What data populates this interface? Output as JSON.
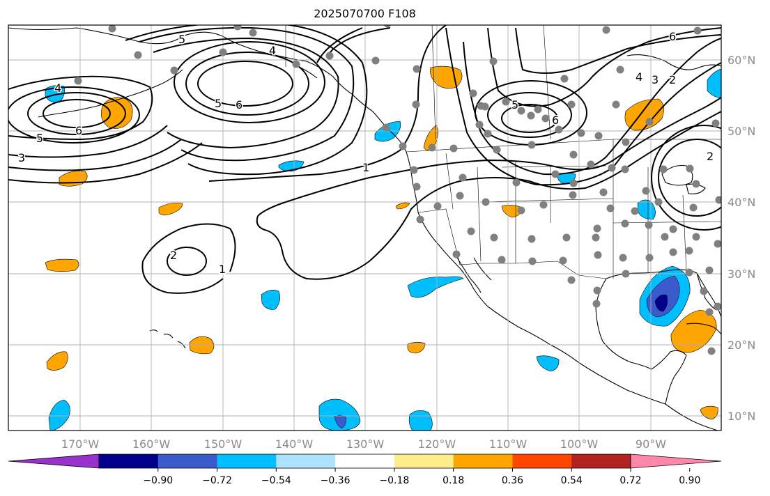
{
  "title": "2025070700 F108",
  "map": {
    "lon_ticks": [
      "170°W",
      "160°W",
      "150°W",
      "140°W",
      "130°W",
      "120°W",
      "110°W",
      "100°W",
      "90°W"
    ],
    "lat_ticks": [
      "60°N",
      "50°N",
      "40°N",
      "30°N",
      "20°N",
      "10°N"
    ],
    "contour_labels": [
      "5",
      "4",
      "5",
      "6",
      "4",
      "5",
      "6",
      "3",
      "2",
      "1",
      "2",
      "1",
      "4",
      "3",
      "2",
      "5",
      "6",
      "6"
    ],
    "colors": {
      "land_outline": "#000000",
      "grid": "#b0b0b0",
      "station_dot": "#808080",
      "contour": "#000000"
    }
  },
  "colorbar": {
    "colors": [
      "#9932cc",
      "#00008b",
      "#3b5bcc",
      "#00bfff",
      "#aee3ff",
      "#ffffff",
      "#ffec8b",
      "#ffa500",
      "#ff4500",
      "#b22222",
      "#ff88aa"
    ],
    "tick_labels": [
      "−0.90",
      "−0.72",
      "−0.54",
      "−0.36",
      "−0.18",
      "0.18",
      "0.36",
      "0.54",
      "0.72",
      "0.90"
    ]
  }
}
